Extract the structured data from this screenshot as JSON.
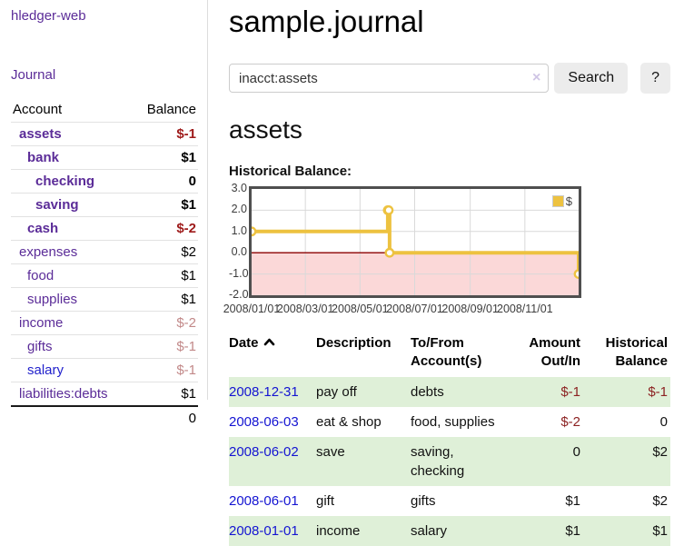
{
  "window": {
    "title": "sample.journal"
  },
  "icons": {
    "clear": "×",
    "sort": "chevron-up"
  },
  "colors": {
    "link_purple": "#5b2c98",
    "link_blue": "#2222cc",
    "date_link_blue": "#1414d2",
    "negative_bold": "#9e1a1a",
    "negative_muted": "#c28989",
    "negative_table": "#8c2222",
    "row_stripe_green": "#dff0d8",
    "chart_line_gold": "#edc240",
    "chart_negative_band": "#fbd8d8",
    "chart_zero_line": "#8b0000"
  },
  "sidebar": {
    "app_title": "hledger-web",
    "journal_link": "Journal",
    "accounts": {
      "header_account": "Account",
      "header_balance": "Balance",
      "rows": [
        {
          "name": "assets",
          "balance": "$-1",
          "indent": 1,
          "bold": true,
          "balance_style": "neg",
          "link": "purple"
        },
        {
          "name": "bank",
          "balance": "$1",
          "indent": 2,
          "bold": true,
          "balance_style": "normal",
          "link": "purple"
        },
        {
          "name": "checking",
          "balance": "0",
          "indent": 3,
          "bold": true,
          "balance_style": "normal",
          "link": "purple"
        },
        {
          "name": "saving",
          "balance": "$1",
          "indent": 3,
          "bold": true,
          "balance_style": "normal",
          "link": "purple"
        },
        {
          "name": "cash",
          "balance": "$-2",
          "indent": 2,
          "bold": true,
          "balance_style": "neg",
          "link": "purple"
        },
        {
          "name": "expenses",
          "balance": "$2",
          "indent": 1,
          "bold": false,
          "balance_style": "normal",
          "link": "purple"
        },
        {
          "name": "food",
          "balance": "$1",
          "indent": 2,
          "bold": false,
          "balance_style": "normal",
          "link": "purple"
        },
        {
          "name": "supplies",
          "balance": "$1",
          "indent": 2,
          "bold": false,
          "balance_style": "normal",
          "link": "purple"
        },
        {
          "name": "income",
          "balance": "$-2",
          "indent": 1,
          "bold": false,
          "balance_style": "neg-muted",
          "link": "purple"
        },
        {
          "name": "gifts",
          "balance": "$-1",
          "indent": 2,
          "bold": false,
          "balance_style": "neg-muted",
          "link": "purple"
        },
        {
          "name": "salary",
          "balance": "$-1",
          "indent": 2,
          "bold": false,
          "balance_style": "neg-muted",
          "link": "blue"
        },
        {
          "name": "liabilities:debts",
          "balance": "$1",
          "indent": 1,
          "bold": false,
          "balance_style": "normal",
          "link": "purple"
        }
      ],
      "total": "0"
    }
  },
  "search": {
    "value": "inacct:assets",
    "clear_icon": "×",
    "search_button": "Search",
    "help_button": "?"
  },
  "main": {
    "account_heading": "assets",
    "chart_label": "Historical Balance:"
  },
  "chart_data": {
    "type": "line",
    "step": true,
    "title": "Historical Balance:",
    "series": [
      {
        "name": "$",
        "color": "#edc240",
        "x": [
          "2008-01-01",
          "2008-06-01",
          "2008-06-02",
          "2008-06-03",
          "2008-12-31"
        ],
        "y": [
          1,
          2,
          2,
          0,
          -1
        ]
      }
    ],
    "xlim": [
      "2008-01-01",
      "2008-12-31"
    ],
    "ylim": [
      -2,
      3
    ],
    "x_ticks": [
      "2008/01/01",
      "2008/03/01",
      "2008/05/01",
      "2008/07/01",
      "2008/09/01",
      "2008/11/01"
    ],
    "y_ticks": [
      "3.0",
      "2.0",
      "1.0",
      "0.0",
      "-1.0",
      "-2.0"
    ],
    "grid": true,
    "negative_region_color": "#fbd8d8",
    "zero_line_color": "#8b0000",
    "legend": {
      "position": "top-right",
      "entries": [
        "$"
      ]
    }
  },
  "register": {
    "columns": [
      "Date",
      "Description",
      "To/From Account(s)",
      "Amount Out/In",
      "Historical Balance"
    ],
    "rows": [
      {
        "date": "2008-12-31",
        "description": "pay off",
        "accounts": [
          "debts"
        ],
        "amount": "$-1",
        "amount_negative": true,
        "balance": "$-1",
        "balance_negative": true
      },
      {
        "date": "2008-06-03",
        "description": "eat & shop",
        "accounts": [
          "food",
          "supplies"
        ],
        "amount": "$-2",
        "amount_negative": true,
        "balance": "0",
        "balance_negative": false
      },
      {
        "date": "2008-06-02",
        "description": "save",
        "accounts": [
          "saving",
          "checking"
        ],
        "amount": "0",
        "amount_negative": false,
        "balance": "$2",
        "balance_negative": false
      },
      {
        "date": "2008-06-01",
        "description": "gift",
        "accounts": [
          "gifts"
        ],
        "amount": "$1",
        "amount_negative": false,
        "balance": "$2",
        "balance_negative": false
      },
      {
        "date": "2008-01-01",
        "description": "income",
        "accounts": [
          "salary"
        ],
        "amount": "$1",
        "amount_negative": false,
        "balance": "$1",
        "balance_negative": false
      }
    ]
  }
}
